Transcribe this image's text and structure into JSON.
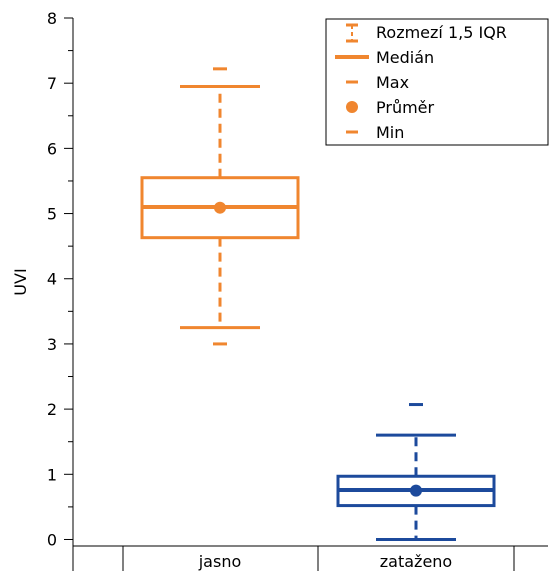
{
  "chart_data": {
    "type": "boxplot",
    "ylabel": "UVI",
    "ylim": [
      -0.1,
      8.0
    ],
    "yticks": [
      "0",
      "1",
      "2",
      "3",
      "4",
      "5",
      "6",
      "7",
      "8"
    ],
    "categories": [
      "jasno",
      "zataženo"
    ],
    "boxes": [
      {
        "category": "jasno",
        "color": "#f0862f",
        "min": 3.0,
        "whisker_low": 3.25,
        "q1": 4.63,
        "median": 5.1,
        "mean": 5.09,
        "q3": 5.55,
        "whisker_high": 6.95,
        "max": 7.22
      },
      {
        "category": "zataženo",
        "color": "#1c4a9c",
        "min": 0.0,
        "whisker_low": 0.0,
        "q1": 0.52,
        "median": 0.76,
        "mean": 0.75,
        "q3": 0.97,
        "whisker_high": 1.6,
        "max": 2.07
      }
    ],
    "legend": {
      "placement": "top-right",
      "entries": [
        "Rozmezí 1,5 IQR",
        "Medián",
        "Max",
        "Průměr",
        "Min"
      ]
    }
  }
}
